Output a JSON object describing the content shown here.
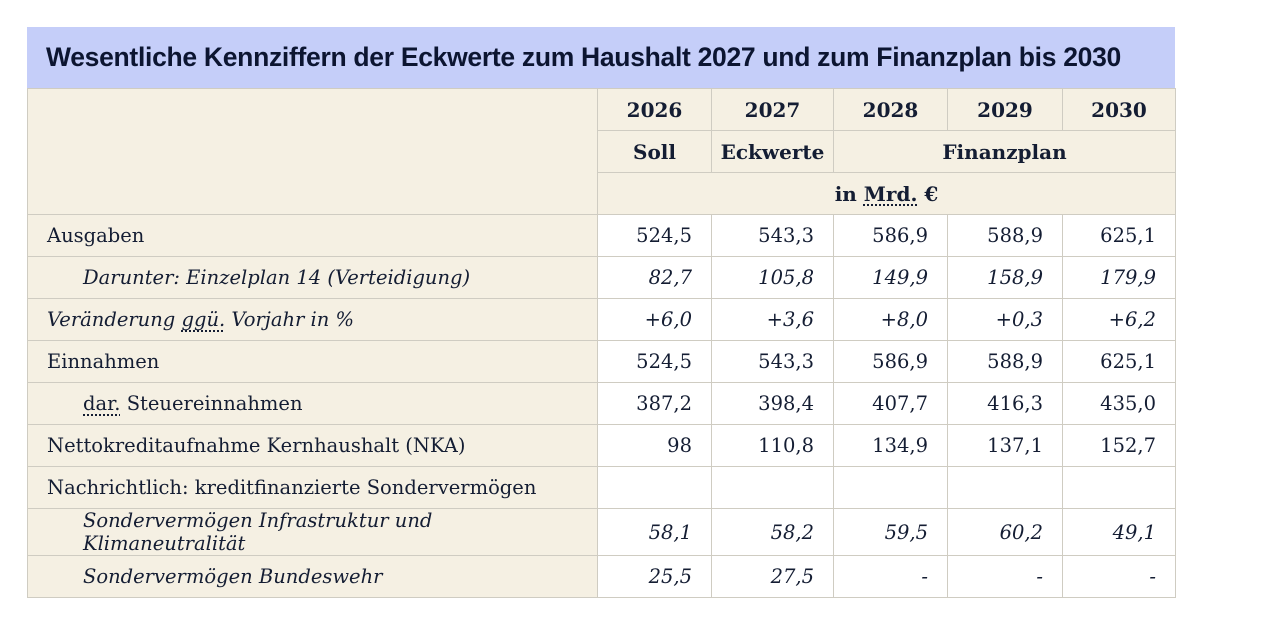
{
  "colors": {
    "page_bg": "#ffffff",
    "title_bar_bg": "#c5cef9",
    "title_text": "#0c1531",
    "header_cell_bg": "#f5f0e3",
    "label_cell_bg": "#f5f0e3",
    "value_cell_bg": "#ffffff",
    "border": "#cfccc2",
    "text": "#141d33"
  },
  "chart_data": {
    "type": "table",
    "title": "Wesentliche Kennziffern der Eckwerte zum Haushalt 2027 und zum Finanzplan bis 2030",
    "columns": [
      "2026",
      "2027",
      "2028",
      "2029",
      "2030"
    ],
    "subheaders": [
      {
        "label": "Soll",
        "span": 1
      },
      {
        "label": "Eckwerte",
        "span": 1
      },
      {
        "label": "Finanzplan",
        "span": 3
      }
    ],
    "unit_parts": [
      {
        "text": "in "
      },
      {
        "text": "Mrd.",
        "abbr": true
      },
      {
        "text": " €"
      }
    ],
    "rows": [
      {
        "name": "ausgaben",
        "style": "bold",
        "indent": false,
        "label_parts": [
          {
            "text": "Ausgaben"
          }
        ],
        "values": [
          "524,5",
          "543,3",
          "586,9",
          "588,9",
          "625,1"
        ]
      },
      {
        "name": "einzelplan-14-verteidigung",
        "style": "italic",
        "indent": true,
        "label_parts": [
          {
            "text": "Darunter: Einzelplan 14 (Verteidigung)"
          }
        ],
        "values": [
          "82,7",
          "105,8",
          "149,9",
          "158,9",
          "179,9"
        ]
      },
      {
        "name": "veraenderung-ggue-vorjahr",
        "style": "italic",
        "indent": false,
        "label_parts": [
          {
            "text": "Veränderung "
          },
          {
            "text": "ggü.",
            "abbr": true
          },
          {
            "text": " Vorjahr in %"
          }
        ],
        "values": [
          "+6,0",
          "+3,6",
          "+8,0",
          "+0,3",
          "+6,2"
        ]
      },
      {
        "name": "einnahmen",
        "style": "bold",
        "indent": false,
        "label_parts": [
          {
            "text": "Einnahmen"
          }
        ],
        "values": [
          "524,5",
          "543,3",
          "586,9",
          "588,9",
          "625,1"
        ]
      },
      {
        "name": "steuereinnahmen",
        "style": "regular",
        "indent": true,
        "label_parts": [
          {
            "text": "dar.",
            "abbr": true
          },
          {
            "text": " Steuereinnahmen"
          }
        ],
        "values": [
          "387,2",
          "398,4",
          "407,7",
          "416,3",
          "435,0"
        ]
      },
      {
        "name": "nettokreditaufnahme-kernhaushalt-nka",
        "style": "bold",
        "indent": false,
        "label_parts": [
          {
            "text": "Nettokreditaufnahme Kernhaushalt (NKA)"
          }
        ],
        "values": [
          "98",
          "110,8",
          "134,9",
          "137,1",
          "152,7"
        ]
      },
      {
        "name": "nachrichtlich-kreditfinanzierte-sondervermoegen",
        "style": "bold",
        "indent": false,
        "label_parts": [
          {
            "text": "Nachrichtlich: kreditfinanzierte Sondervermögen"
          }
        ],
        "values": [
          "",
          "",
          "",
          "",
          ""
        ]
      },
      {
        "name": "sondervermoegen-infrastruktur-klimaneutralitaet",
        "style": "italic",
        "indent": true,
        "label_parts": [
          {
            "text": "Sondervermögen Infrastruktur und Klimaneutralität"
          }
        ],
        "values": [
          "58,1",
          "58,2",
          "59,5",
          "60,2",
          "49,1"
        ]
      },
      {
        "name": "sondervermoegen-bundeswehr",
        "style": "italic",
        "indent": true,
        "label_parts": [
          {
            "text": "Sondervermögen Bundeswehr"
          }
        ],
        "values": [
          "25,5",
          "27,5",
          "-",
          "-",
          "-"
        ]
      }
    ]
  }
}
